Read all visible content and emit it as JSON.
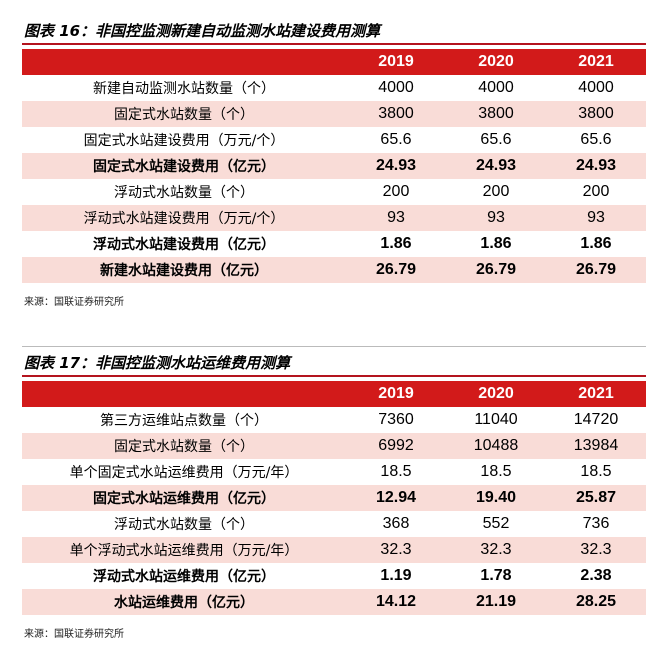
{
  "tables": [
    {
      "caption": "图表 16：非国控监测新建自动监测水站建设费用测算",
      "header": [
        "",
        "2019",
        "2020",
        "2021"
      ],
      "rows": [
        {
          "label": "新建自动监测水站数量（个）",
          "values": [
            "4000",
            "4000",
            "4000"
          ],
          "shade": false,
          "bold": false
        },
        {
          "label": "固定式水站数量（个）",
          "values": [
            "3800",
            "3800",
            "3800"
          ],
          "shade": true,
          "bold": false
        },
        {
          "label": "固定式水站建设费用（万元/个）",
          "values": [
            "65.6",
            "65.6",
            "65.6"
          ],
          "shade": false,
          "bold": false
        },
        {
          "label": "固定式水站建设费用（亿元）",
          "values": [
            "24.93",
            "24.93",
            "24.93"
          ],
          "shade": true,
          "bold": true
        },
        {
          "label": "浮动式水站数量（个）",
          "values": [
            "200",
            "200",
            "200"
          ],
          "shade": false,
          "bold": false
        },
        {
          "label": "浮动式水站建设费用（万元/个）",
          "values": [
            "93",
            "93",
            "93"
          ],
          "shade": true,
          "bold": false
        },
        {
          "label": "浮动式水站建设费用（亿元）",
          "values": [
            "1.86",
            "1.86",
            "1.86"
          ],
          "shade": false,
          "bold": true
        },
        {
          "label": "新建水站建设费用（亿元）",
          "values": [
            "26.79",
            "26.79",
            "26.79"
          ],
          "shade": true,
          "bold": true
        }
      ],
      "source": "来源：国联证券研究所"
    },
    {
      "caption": "图表 17：非国控监测水站运维费用测算",
      "header": [
        "",
        "2019",
        "2020",
        "2021"
      ],
      "rows": [
        {
          "label": "第三方运维站点数量（个）",
          "values": [
            "7360",
            "11040",
            "14720"
          ],
          "shade": false,
          "bold": false
        },
        {
          "label": "固定式水站数量（个）",
          "values": [
            "6992",
            "10488",
            "13984"
          ],
          "shade": true,
          "bold": false
        },
        {
          "label": "单个固定式水站运维费用（万元/年）",
          "values": [
            "18.5",
            "18.5",
            "18.5"
          ],
          "shade": false,
          "bold": false
        },
        {
          "label": "固定式水站运维费用（亿元）",
          "values": [
            "12.94",
            "19.40",
            "25.87"
          ],
          "shade": true,
          "bold": true
        },
        {
          "label": "浮动式水站数量（个）",
          "values": [
            "368",
            "552",
            "736"
          ],
          "shade": false,
          "bold": false
        },
        {
          "label": "单个浮动式水站运维费用（万元/年）",
          "values": [
            "32.3",
            "32.3",
            "32.3"
          ],
          "shade": true,
          "bold": false
        },
        {
          "label": "浮动式水站运维费用（亿元）",
          "values": [
            "1.19",
            "1.78",
            "2.38"
          ],
          "shade": false,
          "bold": true
        },
        {
          "label": "水站运维费用（亿元）",
          "values": [
            "14.12",
            "21.19",
            "28.25"
          ],
          "shade": true,
          "bold": true
        }
      ],
      "source": "来源：国联证券研究所"
    }
  ]
}
